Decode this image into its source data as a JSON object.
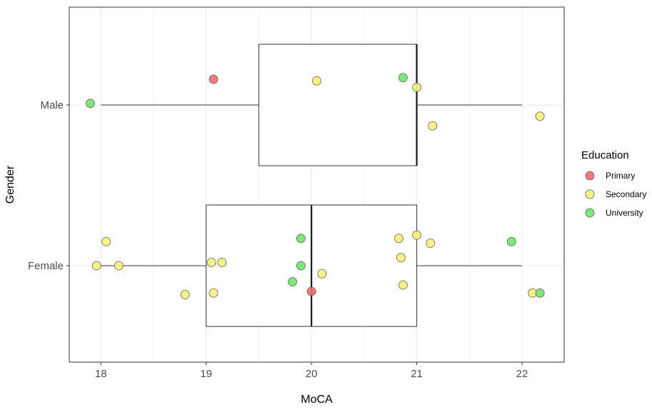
{
  "chart_data": {
    "type": "boxplot",
    "xlabel": "MoCA",
    "ylabel": "Gender",
    "xlim": [
      17.7,
      22.4
    ],
    "x_ticks": [
      18,
      19,
      20,
      21,
      22
    ],
    "categories": [
      "Female",
      "Male"
    ],
    "grid": true,
    "legend": {
      "title": "Education",
      "placement": "right",
      "entries": [
        {
          "name": "Primary",
          "color": "#f06b6b"
        },
        {
          "name": "Secondary",
          "color": "#f7f27a"
        },
        {
          "name": "University",
          "color": "#70e36c"
        }
      ]
    },
    "boxes": [
      {
        "category": "Male",
        "whisker_low": 18.0,
        "q1": 19.5,
        "median": 21.0,
        "q3": 21.0,
        "whisker_high": 22.0
      },
      {
        "category": "Female",
        "whisker_low": 18.0,
        "q1": 19.0,
        "median": 20.0,
        "q3": 21.0,
        "whisker_high": 22.0
      }
    ],
    "points": [
      {
        "category": "Male",
        "x": 17.9,
        "jitter": 0.01,
        "education": "University"
      },
      {
        "category": "Male",
        "x": 19.07,
        "jitter": 0.16,
        "education": "Primary"
      },
      {
        "category": "Male",
        "x": 20.05,
        "jitter": 0.15,
        "education": "Secondary"
      },
      {
        "category": "Male",
        "x": 20.87,
        "jitter": 0.17,
        "education": "University"
      },
      {
        "category": "Male",
        "x": 21.0,
        "jitter": 0.11,
        "education": "Secondary"
      },
      {
        "category": "Male",
        "x": 21.15,
        "jitter": -0.13,
        "education": "Secondary"
      },
      {
        "category": "Male",
        "x": 22.17,
        "jitter": -0.07,
        "education": "Secondary"
      },
      {
        "category": "Female",
        "x": 17.96,
        "jitter": 0.0,
        "education": "Secondary"
      },
      {
        "category": "Female",
        "x": 18.05,
        "jitter": 0.15,
        "education": "Secondary"
      },
      {
        "category": "Female",
        "x": 18.17,
        "jitter": 0.0,
        "education": "Secondary"
      },
      {
        "category": "Female",
        "x": 18.8,
        "jitter": -0.18,
        "education": "Secondary"
      },
      {
        "category": "Female",
        "x": 19.05,
        "jitter": 0.02,
        "education": "Secondary"
      },
      {
        "category": "Female",
        "x": 19.07,
        "jitter": -0.17,
        "education": "Secondary"
      },
      {
        "category": "Female",
        "x": 19.15,
        "jitter": 0.02,
        "education": "Secondary"
      },
      {
        "category": "Female",
        "x": 19.82,
        "jitter": -0.1,
        "education": "University"
      },
      {
        "category": "Female",
        "x": 19.9,
        "jitter": 0.17,
        "education": "University"
      },
      {
        "category": "Female",
        "x": 19.9,
        "jitter": 0.0,
        "education": "University"
      },
      {
        "category": "Female",
        "x": 20.0,
        "jitter": -0.16,
        "education": "Primary"
      },
      {
        "category": "Female",
        "x": 20.1,
        "jitter": -0.05,
        "education": "Secondary"
      },
      {
        "category": "Female",
        "x": 20.83,
        "jitter": 0.17,
        "education": "Secondary"
      },
      {
        "category": "Female",
        "x": 20.85,
        "jitter": 0.05,
        "education": "Secondary"
      },
      {
        "category": "Female",
        "x": 20.87,
        "jitter": -0.12,
        "education": "Secondary"
      },
      {
        "category": "Female",
        "x": 21.0,
        "jitter": 0.19,
        "education": "Secondary"
      },
      {
        "category": "Female",
        "x": 21.13,
        "jitter": 0.14,
        "education": "Secondary"
      },
      {
        "category": "Female",
        "x": 21.9,
        "jitter": 0.15,
        "education": "University"
      },
      {
        "category": "Female",
        "x": 22.1,
        "jitter": -0.17,
        "education": "Secondary"
      },
      {
        "category": "Female",
        "x": 22.17,
        "jitter": -0.17,
        "education": "University"
      }
    ]
  }
}
